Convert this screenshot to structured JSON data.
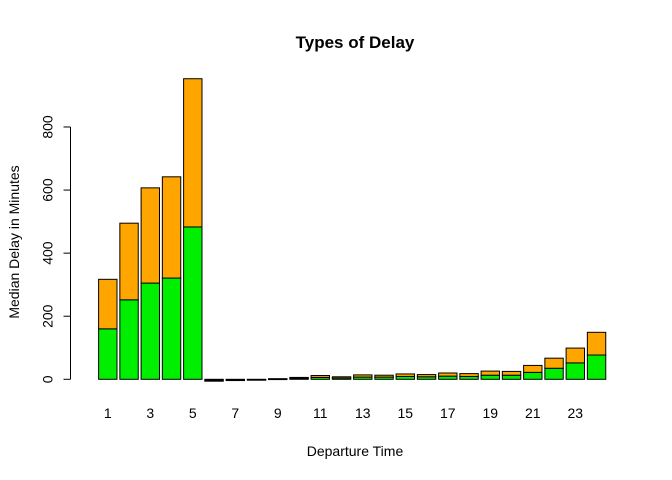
{
  "chart_data": {
    "type": "bar",
    "stacked": true,
    "title": "Types of Delay",
    "xlabel": "Departure Time",
    "ylabel": "Median Delay in Minutes",
    "categories": [
      "1",
      "2",
      "3",
      "4",
      "5",
      "6",
      "7",
      "8",
      "9",
      "10",
      "11",
      "12",
      "13",
      "14",
      "15",
      "16",
      "17",
      "18",
      "19",
      "20",
      "21",
      "22",
      "23",
      "24"
    ],
    "x_tick_labels": [
      "1",
      "3",
      "5",
      "7",
      "9",
      "11",
      "13",
      "15",
      "17",
      "19",
      "21",
      "23"
    ],
    "y_ticks": [
      0,
      200,
      400,
      600,
      800
    ],
    "ylim": [
      -5,
      960
    ],
    "grid": false,
    "series": [
      {
        "color": "#00EE00",
        "values": [
          160,
          252,
          305,
          321,
          483,
          -3,
          -2,
          -1,
          1,
          3,
          6,
          4,
          7,
          7,
          9,
          8,
          10,
          9,
          13,
          13,
          22,
          35,
          52,
          77
        ]
      },
      {
        "color": "#FFA500",
        "values": [
          157,
          243,
          302,
          321,
          470,
          -3,
          -2,
          -1,
          1,
          3,
          6,
          4,
          7,
          6,
          8,
          7,
          10,
          9,
          13,
          12,
          22,
          32,
          47,
          72
        ]
      }
    ]
  }
}
